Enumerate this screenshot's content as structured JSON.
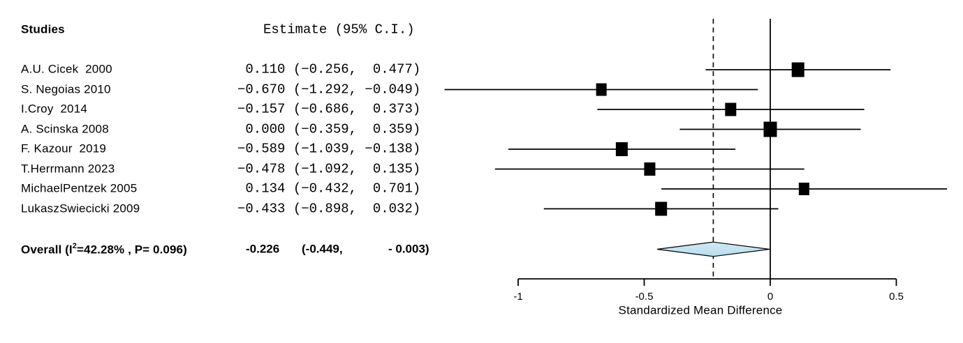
{
  "table": {
    "studies_header": "Studies",
    "estimate_header": "Estimate (95% C.I.)"
  },
  "overall": {
    "label_prefix": "Overall (I",
    "label_sup": "2",
    "label_suffix": "=42.28% , P= 0.096)",
    "estimate_text": "-0.226",
    "ci_lower_text": "(-0.449,",
    "ci_upper_text": "- 0.003)"
  },
  "colors": {
    "diamond_fill": "#b9ddee",
    "diamond_fill_light": "#cfe9f5",
    "diamond_stroke": "#000000",
    "line_color": "#000000"
  },
  "chart_data": {
    "type": "forest",
    "title": "",
    "xlabel": "Standardized Mean Difference",
    "x_tick_labels": [
      "-1",
      "-0.5",
      "0",
      "0.5"
    ],
    "x_tick_values": [
      -1,
      -0.5,
      0,
      0.5
    ],
    "xlim": [
      -1.31,
      0.72
    ],
    "zero_line_x": 0,
    "grid": false,
    "studies": [
      {
        "name": "A.U. Cicek  2000",
        "estimate": 0.11,
        "lower": -0.256,
        "upper": 0.477,
        "estimate_text": " 0.110 (−0.256,  0.477)",
        "marker_size": 18
      },
      {
        "name": "S. Negoias 2010",
        "estimate": -0.67,
        "lower": -1.292,
        "upper": -0.049,
        "estimate_text": "−0.670 (−1.292, −0.049)",
        "marker_size": 15
      },
      {
        "name": "I.Croy  2014",
        "estimate": -0.157,
        "lower": -0.686,
        "upper": 0.373,
        "estimate_text": "−0.157 (−0.686,  0.373)",
        "marker_size": 16
      },
      {
        "name": "A. Scinska 2008",
        "estimate": 0.0,
        "lower": -0.359,
        "upper": 0.359,
        "estimate_text": " 0.000 (−0.359,  0.359)",
        "marker_size": 19
      },
      {
        "name": "F. Kazour  2019",
        "estimate": -0.589,
        "lower": -1.039,
        "upper": -0.138,
        "estimate_text": "−0.589 (−1.039, −0.138)",
        "marker_size": 17
      },
      {
        "name": "T.Herrmann 2023",
        "estimate": -0.478,
        "lower": -1.092,
        "upper": 0.135,
        "estimate_text": "−0.478 (−1.092,  0.135)",
        "marker_size": 16
      },
      {
        "name": "MichaelPentzek 2005",
        "estimate": 0.134,
        "lower": -0.432,
        "upper": 0.701,
        "estimate_text": " 0.134 (−0.432,  0.701)",
        "marker_size": 15
      },
      {
        "name": "LukaszSwiecicki 2009",
        "estimate": -0.433,
        "lower": -0.898,
        "upper": 0.032,
        "estimate_text": "−0.433 (−0.898,  0.032)",
        "marker_size": 17
      }
    ],
    "overall": {
      "label": "Overall (I2=42.28% , P= 0.096)",
      "estimate": -0.226,
      "lower": -0.449,
      "upper": -0.003,
      "i_squared_pct": 42.28,
      "p_value": 0.096
    }
  }
}
